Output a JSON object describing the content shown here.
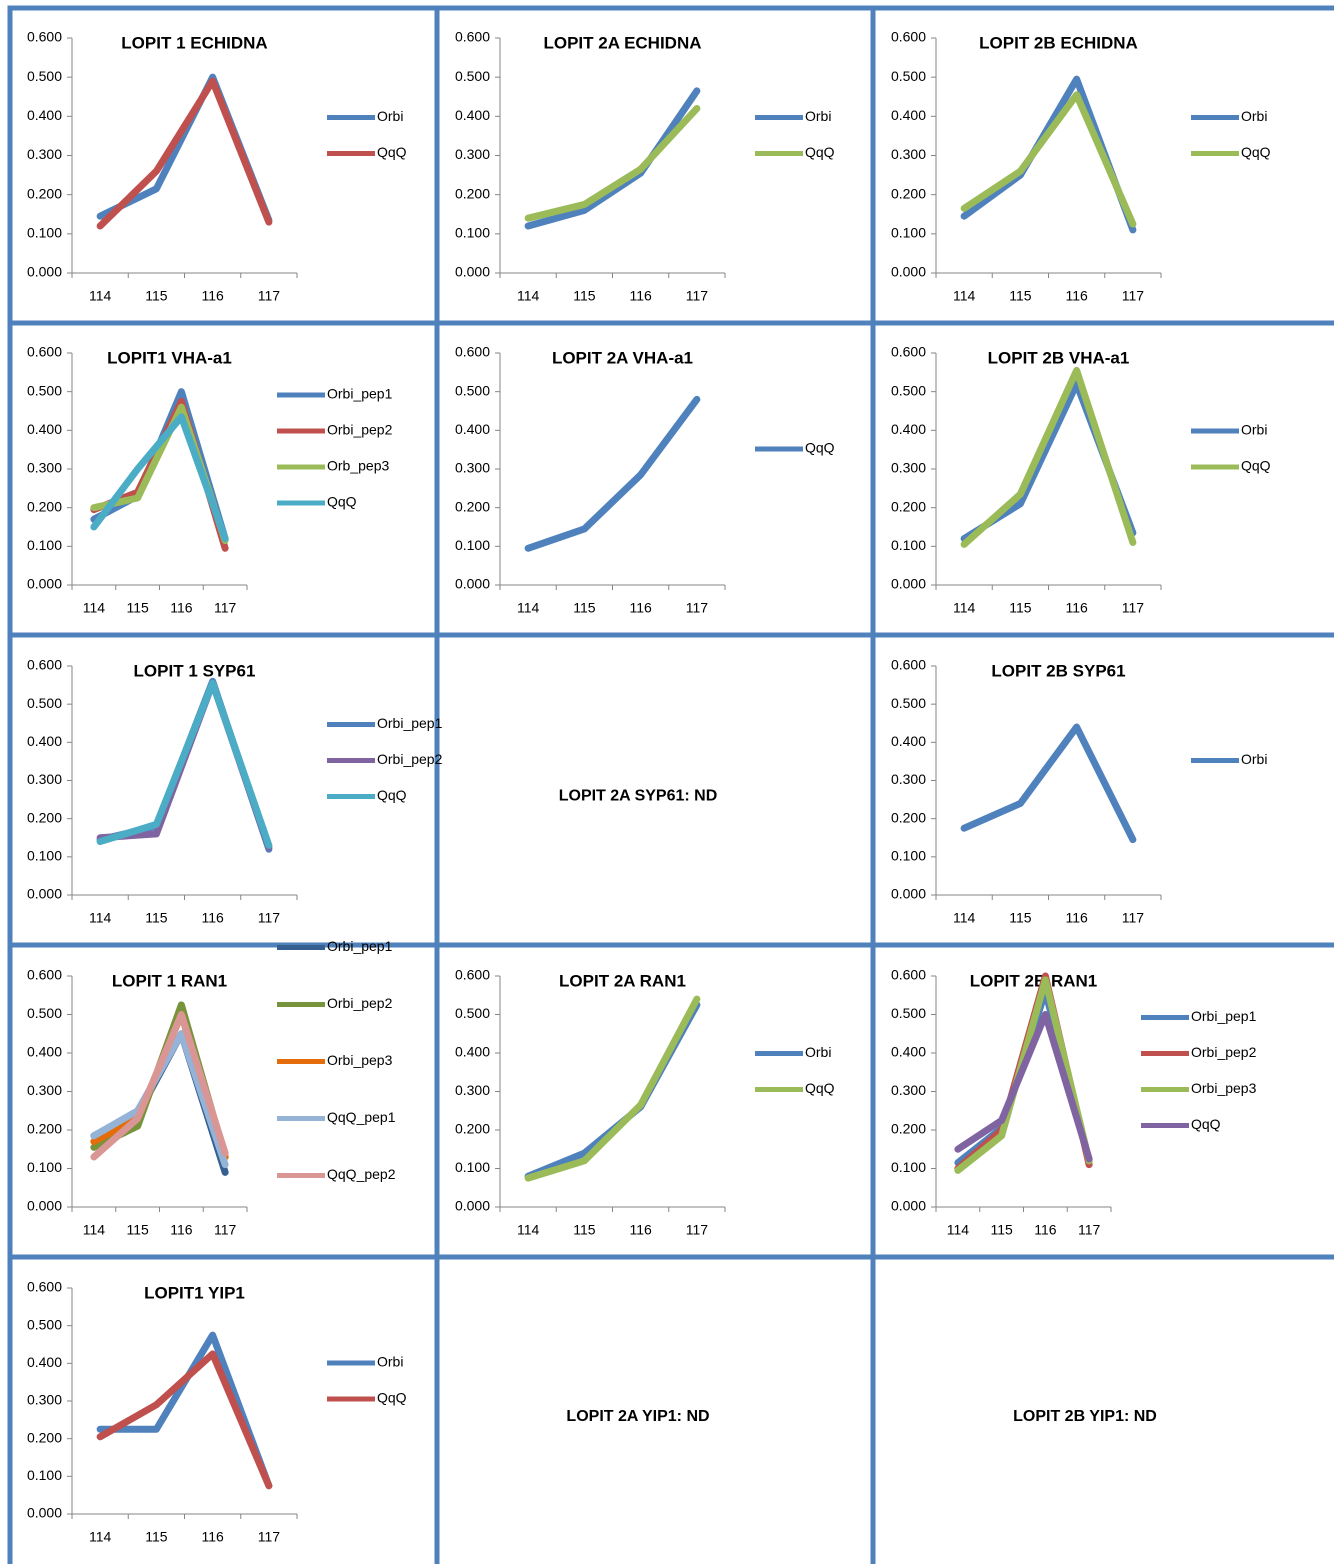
{
  "chart_data": [
    {
      "type": "line",
      "title": "LOPIT 1 ECHIDNA",
      "categories": [
        "114",
        "115",
        "116",
        "117"
      ],
      "ylim": [
        0,
        0.6
      ],
      "yticks": [
        {
          "value": 0,
          "label": "0.000"
        },
        {
          "value": 0.1,
          "label": "0.100"
        },
        {
          "value": 0.2,
          "label": "0.200"
        },
        {
          "value": 0.3,
          "label": "0.300"
        },
        {
          "value": 0.4,
          "label": "0.400"
        },
        {
          "value": 0.5,
          "label": "0.500"
        },
        {
          "value": 0.6,
          "label": "0.600"
        }
      ],
      "series": [
        {
          "name": "Orbi",
          "color": "#4f81bd",
          "values": [
            0.145,
            0.215,
            0.5,
            0.135
          ]
        },
        {
          "name": "QqQ",
          "color": "#c0504d",
          "values": [
            0.12,
            0.26,
            0.49,
            0.13
          ]
        }
      ]
    },
    {
      "type": "line",
      "title": "LOPIT 2A ECHIDNA",
      "categories": [
        "114",
        "115",
        "116",
        "117"
      ],
      "ylim": [
        0,
        0.6
      ],
      "yticks": [
        {
          "value": 0,
          "label": "0.000"
        },
        {
          "value": 0.1,
          "label": "0.100"
        },
        {
          "value": 0.2,
          "label": "0.200"
        },
        {
          "value": 0.3,
          "label": "0.300"
        },
        {
          "value": 0.4,
          "label": "0.400"
        },
        {
          "value": 0.5,
          "label": "0.500"
        },
        {
          "value": 0.6,
          "label": "0.600"
        }
      ],
      "series": [
        {
          "name": "Orbi",
          "color": "#4f81bd",
          "values": [
            0.12,
            0.16,
            0.255,
            0.465
          ]
        },
        {
          "name": "QqQ",
          "color": "#9bbb59",
          "values": [
            0.14,
            0.175,
            0.265,
            0.42
          ]
        }
      ]
    },
    {
      "type": "line",
      "title": "LOPIT 2B ECHIDNA",
      "categories": [
        "114",
        "115",
        "116",
        "117"
      ],
      "ylim": [
        0,
        0.6
      ],
      "yticks": [
        {
          "value": 0,
          "label": "0.000"
        },
        {
          "value": 0.1,
          "label": "0.100"
        },
        {
          "value": 0.2,
          "label": "0.200"
        },
        {
          "value": 0.3,
          "label": "0.300"
        },
        {
          "value": 0.4,
          "label": "0.400"
        },
        {
          "value": 0.5,
          "label": "0.500"
        },
        {
          "value": 0.6,
          "label": "0.600"
        }
      ],
      "series": [
        {
          "name": "Orbi",
          "color": "#4f81bd",
          "values": [
            0.145,
            0.25,
            0.495,
            0.11
          ]
        },
        {
          "name": "QqQ",
          "color": "#9bbb59",
          "values": [
            0.165,
            0.26,
            0.455,
            0.125
          ]
        }
      ]
    },
    {
      "type": "line",
      "title": "LOPIT1 VHA-a1",
      "categories": [
        "114",
        "115",
        "116",
        "117"
      ],
      "ylim": [
        0,
        0.6
      ],
      "yticks": [
        {
          "value": 0,
          "label": "0.000"
        },
        {
          "value": 0.1,
          "label": "0.100"
        },
        {
          "value": 0.2,
          "label": "0.200"
        },
        {
          "value": 0.3,
          "label": "0.300"
        },
        {
          "value": 0.4,
          "label": "0.400"
        },
        {
          "value": 0.5,
          "label": "0.500"
        },
        {
          "value": 0.6,
          "label": "0.600"
        }
      ],
      "series": [
        {
          "name": "Orbi_pep1",
          "color": "#4f81bd",
          "values": [
            0.17,
            0.23,
            0.5,
            0.12
          ]
        },
        {
          "name": "Orbi_pep2",
          "color": "#c0504d",
          "values": [
            0.195,
            0.24,
            0.475,
            0.095
          ]
        },
        {
          "name": "Orb_pep3",
          "color": "#9bbb59",
          "values": [
            0.2,
            0.225,
            0.46,
            0.115
          ]
        },
        {
          "name": "QqQ",
          "color": "#4bacc6",
          "values": [
            0.15,
            0.3,
            0.435,
            0.12
          ]
        }
      ]
    },
    {
      "type": "line",
      "title": "LOPIT 2A VHA-a1",
      "categories": [
        "114",
        "115",
        "116",
        "117"
      ],
      "ylim": [
        0,
        0.6
      ],
      "yticks": [
        {
          "value": 0,
          "label": "0.000"
        },
        {
          "value": 0.1,
          "label": "0.100"
        },
        {
          "value": 0.2,
          "label": "0.200"
        },
        {
          "value": 0.3,
          "label": "0.300"
        },
        {
          "value": 0.4,
          "label": "0.400"
        },
        {
          "value": 0.5,
          "label": "0.500"
        },
        {
          "value": 0.6,
          "label": "0.600"
        }
      ],
      "series": [
        {
          "name": "QqQ",
          "color": "#4f81bd",
          "values": [
            0.095,
            0.145,
            0.285,
            0.48
          ]
        }
      ]
    },
    {
      "type": "line",
      "title": "LOPIT 2B VHA-a1",
      "categories": [
        "114",
        "115",
        "116",
        "117"
      ],
      "ylim": [
        0,
        0.6
      ],
      "yticks": [
        {
          "value": 0,
          "label": "0.000"
        },
        {
          "value": 0.1,
          "label": "0.100"
        },
        {
          "value": 0.2,
          "label": "0.200"
        },
        {
          "value": 0.3,
          "label": "0.300"
        },
        {
          "value": 0.4,
          "label": "0.400"
        },
        {
          "value": 0.5,
          "label": "0.500"
        },
        {
          "value": 0.6,
          "label": "0.600"
        }
      ],
      "series": [
        {
          "name": "Orbi",
          "color": "#4f81bd",
          "values": [
            0.12,
            0.21,
            0.52,
            0.135
          ]
        },
        {
          "name": "QqQ",
          "color": "#9bbb59",
          "values": [
            0.105,
            0.235,
            0.555,
            0.11
          ]
        }
      ]
    },
    {
      "type": "line",
      "title": "LOPIT 1 SYP61",
      "categories": [
        "114",
        "115",
        "116",
        "117"
      ],
      "ylim": [
        0,
        0.6
      ],
      "yticks": [
        {
          "value": 0,
          "label": "0.000"
        },
        {
          "value": 0.1,
          "label": "0.100"
        },
        {
          "value": 0.2,
          "label": "0.200"
        },
        {
          "value": 0.3,
          "label": "0.300"
        },
        {
          "value": 0.4,
          "label": "0.400"
        },
        {
          "value": 0.5,
          "label": "0.500"
        },
        {
          "value": 0.6,
          "label": "0.600"
        }
      ],
      "series": [
        {
          "name": "Orbi_pep1",
          "color": "#4f81bd",
          "values": [
            0.145,
            0.18,
            0.56,
            0.12
          ]
        },
        {
          "name": "Orbi_pep2",
          "color": "#8064a2",
          "values": [
            0.15,
            0.16,
            0.555,
            0.125
          ]
        },
        {
          "name": "QqQ",
          "color": "#4bacc6",
          "values": [
            0.14,
            0.185,
            0.555,
            0.13
          ]
        }
      ]
    },
    {
      "type": "line",
      "title": "LOPIT 2B SYP61",
      "categories": [
        "114",
        "115",
        "116",
        "117"
      ],
      "ylim": [
        0,
        0.6
      ],
      "yticks": [
        {
          "value": 0,
          "label": "0.000"
        },
        {
          "value": 0.1,
          "label": "0.100"
        },
        {
          "value": 0.2,
          "label": "0.200"
        },
        {
          "value": 0.3,
          "label": "0.300"
        },
        {
          "value": 0.4,
          "label": "0.400"
        },
        {
          "value": 0.5,
          "label": "0.500"
        },
        {
          "value": 0.6,
          "label": "0.600"
        }
      ],
      "series": [
        {
          "name": "Orbi",
          "color": "#4f81bd",
          "values": [
            0.175,
            0.24,
            0.44,
            0.145
          ]
        }
      ]
    },
    {
      "type": "line",
      "title": "LOPIT 1 RAN1",
      "categories": [
        "114",
        "115",
        "116",
        "117"
      ],
      "ylim": [
        0,
        0.6
      ],
      "yticks": [
        {
          "value": 0,
          "label": "0.000"
        },
        {
          "value": 0.1,
          "label": "0.100"
        },
        {
          "value": 0.2,
          "label": "0.200"
        },
        {
          "value": 0.3,
          "label": "0.300"
        },
        {
          "value": 0.4,
          "label": "0.400"
        },
        {
          "value": 0.5,
          "label": "0.500"
        },
        {
          "value": 0.6,
          "label": "0.600"
        }
      ],
      "series": [
        {
          "name": "Orbi_pep1",
          "color": "#365f91",
          "values": [
            0.185,
            0.24,
            0.45,
            0.09
          ]
        },
        {
          "name": "Orbi_pep2",
          "color": "#77933c",
          "values": [
            0.155,
            0.21,
            0.525,
            0.13
          ]
        },
        {
          "name": "Orbi_pep3",
          "color": "#e46c0a",
          "values": [
            0.17,
            0.23,
            0.5,
            0.13
          ]
        },
        {
          "name": "QqQ_pep1",
          "color": "#95b3d7",
          "values": [
            0.185,
            0.25,
            0.45,
            0.11
          ]
        },
        {
          "name": "QqQ_pep2",
          "color": "#d99694",
          "values": [
            0.13,
            0.23,
            0.5,
            0.14
          ]
        }
      ]
    },
    {
      "type": "line",
      "title": "LOPIT 2A RAN1",
      "categories": [
        "114",
        "115",
        "116",
        "117"
      ],
      "ylim": [
        0,
        0.6
      ],
      "yticks": [
        {
          "value": 0,
          "label": "0.000"
        },
        {
          "value": 0.1,
          "label": "0.100"
        },
        {
          "value": 0.2,
          "label": "0.200"
        },
        {
          "value": 0.3,
          "label": "0.300"
        },
        {
          "value": 0.4,
          "label": "0.400"
        },
        {
          "value": 0.5,
          "label": "0.500"
        },
        {
          "value": 0.6,
          "label": "0.600"
        }
      ],
      "series": [
        {
          "name": "Orbi",
          "color": "#4f81bd",
          "values": [
            0.08,
            0.14,
            0.26,
            0.525
          ]
        },
        {
          "name": "QqQ",
          "color": "#9bbb59",
          "values": [
            0.075,
            0.12,
            0.265,
            0.54
          ]
        }
      ]
    },
    {
      "type": "line",
      "title": "LOPIT 2B RAN1",
      "categories": [
        "114",
        "115",
        "116",
        "117"
      ],
      "ylim": [
        0,
        0.6
      ],
      "yticks": [
        {
          "value": 0,
          "label": "0.000"
        },
        {
          "value": 0.1,
          "label": "0.100"
        },
        {
          "value": 0.2,
          "label": "0.200"
        },
        {
          "value": 0.3,
          "label": "0.300"
        },
        {
          "value": 0.4,
          "label": "0.400"
        },
        {
          "value": 0.5,
          "label": "0.500"
        },
        {
          "value": 0.6,
          "label": "0.600"
        }
      ],
      "series": [
        {
          "name": "Orbi_pep1",
          "color": "#4f81bd",
          "values": [
            0.115,
            0.205,
            0.56,
            0.12
          ]
        },
        {
          "name": "Orbi_pep2",
          "color": "#c0504d",
          "values": [
            0.1,
            0.2,
            0.6,
            0.11
          ]
        },
        {
          "name": "Orbi_pep3",
          "color": "#9bbb59",
          "values": [
            0.095,
            0.185,
            0.59,
            0.12
          ]
        },
        {
          "name": "QqQ",
          "color": "#8064a2",
          "values": [
            0.15,
            0.225,
            0.5,
            0.125
          ]
        }
      ]
    },
    {
      "type": "line",
      "title": "LOPIT1 YIP1",
      "categories": [
        "114",
        "115",
        "116",
        "117"
      ],
      "ylim": [
        0,
        0.6
      ],
      "yticks": [
        {
          "value": 0,
          "label": "0.000"
        },
        {
          "value": 0.1,
          "label": "0.100"
        },
        {
          "value": 0.2,
          "label": "0.200"
        },
        {
          "value": 0.3,
          "label": "0.300"
        },
        {
          "value": 0.4,
          "label": "0.400"
        },
        {
          "value": 0.5,
          "label": "0.500"
        },
        {
          "value": 0.6,
          "label": "0.600"
        }
      ],
      "series": [
        {
          "name": "Orbi",
          "color": "#4f81bd",
          "values": [
            0.225,
            0.225,
            0.475,
            0.075
          ]
        },
        {
          "name": "QqQ",
          "color": "#c0504d",
          "values": [
            0.205,
            0.29,
            0.425,
            0.075
          ]
        }
      ]
    }
  ],
  "notes": [
    "LOPIT 2A SYP61: ND",
    "LOPIT 2A YIP1: ND",
    "LOPIT 2B YIP1: ND"
  ]
}
